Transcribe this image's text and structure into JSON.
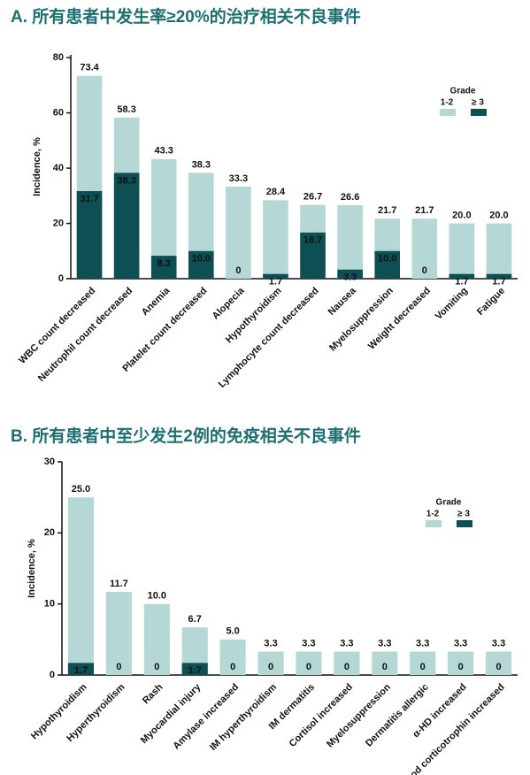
{
  "chart_data": [
    {
      "type": "bar",
      "title": "A. 所有患者中发生率≥20%的治疗相关不良事件",
      "ylabel": "Incidence, %",
      "categories": [
        "WBC count decreased",
        "Neutrophil count decreased",
        "Anemia",
        "Platelet count decreased",
        "Alopecia",
        "Hypothyroidism",
        "Lymphocyte count decreased",
        "Nausea",
        "Myelosuppression",
        "Weight decreased",
        "Vomiting",
        "Fatigue"
      ],
      "series": [
        {
          "name": "1-2",
          "color": "#b5d8d6",
          "values": [
            73.4,
            58.3,
            43.3,
            38.3,
            33.3,
            28.4,
            26.7,
            26.6,
            21.7,
            21.7,
            20.0,
            20.0
          ],
          "value_labels": [
            "73.4",
            "58.3",
            "43.3",
            "38.3",
            "33.3",
            "28.4",
            "26.7",
            "26.6",
            "21.7",
            "21.7",
            "20.0",
            "20.0"
          ]
        },
        {
          "name": "≥ 3",
          "color": "#0d4f53",
          "values": [
            31.7,
            38.3,
            8.3,
            10.0,
            0,
            1.7,
            16.7,
            3.3,
            10.0,
            0,
            1.7,
            1.7
          ],
          "value_labels": [
            "31.7",
            "38.3",
            "8.3",
            "10.0",
            "0",
            "1.7",
            "16.7",
            "3.3",
            "10.0",
            "0",
            "1.7",
            "1.7"
          ]
        }
      ],
      "legend_title": "Grade",
      "ylim": [
        0,
        81
      ],
      "yticks": [
        0,
        20,
        40,
        60,
        80
      ]
    },
    {
      "type": "bar",
      "title": "B. 所有患者中至少发生2例的免疫相关不良事件",
      "ylabel": "Incidence, %",
      "categories": [
        "Hypothyroidism",
        "Hyperthyroidism",
        "Rash",
        "Myocardial injury",
        "Amylase increased",
        "IM hyperthyroidism",
        "IM dermatitis",
        "Cortisol increased",
        "Myelosuppression",
        "Dermatitis allergic",
        "α-HD increased",
        "Blood corticotrophin increased"
      ],
      "series": [
        {
          "name": "1-2",
          "color": "#b5d8d6",
          "values": [
            25.0,
            11.7,
            10.0,
            6.7,
            5.0,
            3.3,
            3.3,
            3.3,
            3.3,
            3.3,
            3.3,
            3.3
          ],
          "value_labels": [
            "25.0",
            "11.7",
            "10.0",
            "6.7",
            "5.0",
            "3.3",
            "3.3",
            "3.3",
            "3.3",
            "3.3",
            "3.3",
            "3.3"
          ]
        },
        {
          "name": "≥ 3",
          "color": "#0d4f53",
          "values": [
            1.7,
            0,
            0,
            1.7,
            0,
            0,
            0,
            0,
            0,
            0,
            0,
            0
          ],
          "value_labels": [
            "1.7",
            "0",
            "0",
            "1.7",
            "0",
            "0",
            "0",
            "0",
            "0",
            "0",
            "0",
            "0"
          ]
        }
      ],
      "legend_title": "Grade",
      "ylim": [
        0,
        30
      ],
      "yticks": [
        0,
        10,
        20,
        30
      ]
    }
  ]
}
